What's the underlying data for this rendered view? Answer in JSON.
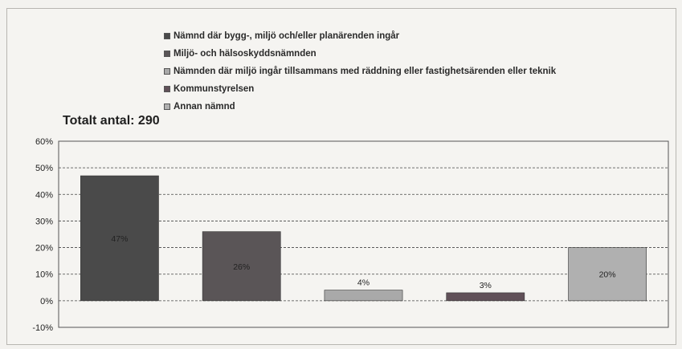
{
  "chart_data": {
    "type": "bar",
    "title": "Totalt antal: 290",
    "series": [
      {
        "name": "Nämnd där bygg-, miljö och/eller planärenden ingår",
        "value": 47,
        "label": "47%",
        "color": "#4a4a4a"
      },
      {
        "name": "Miljö- och hälsoskyddsnämnden",
        "value": 26,
        "label": "26%",
        "color": "#5a5557"
      },
      {
        "name": "Nämnden där miljö ingår tillsammans med räddning eller fastighetsärenden eller teknik",
        "value": 4,
        "label": "4%",
        "color": "#a9a9a9"
      },
      {
        "name": "Kommunstyrelsen",
        "value": 3,
        "label": "3%",
        "color": "#605058"
      },
      {
        "name": "Annan nämnd",
        "value": 20,
        "label": "20%",
        "color": "#b0b0b0"
      }
    ],
    "ylim": [
      -10,
      60
    ],
    "yticks": [
      -10,
      0,
      10,
      20,
      30,
      40,
      50,
      60
    ],
    "ytick_labels": [
      "-10%",
      "0%",
      "10%",
      "20%",
      "30%",
      "40%",
      "50%",
      "60%"
    ],
    "grid": true,
    "legend_position": "top"
  }
}
